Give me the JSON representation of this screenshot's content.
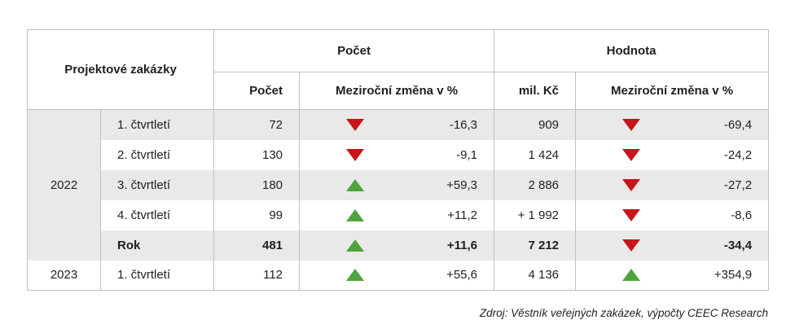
{
  "chart_data": {
    "type": "table",
    "corner_header": "Projektové zakázky",
    "groups": [
      {
        "label": "Počet",
        "subcolumns": [
          "Počet",
          "Meziroční změna v %"
        ]
      },
      {
        "label": "Hodnota",
        "subcolumns": [
          "mil. Kč",
          "Meziroční změna v %"
        ]
      }
    ],
    "rows": [
      {
        "year": "2022",
        "year_rowspan": 5,
        "year_shaded": true,
        "period": "1. čtvrtletí",
        "count": "72",
        "count_change_dir": "down",
        "count_change": "-16,3",
        "value_mil_kc": "909",
        "value_change_dir": "down",
        "value_change": "-69,4",
        "shaded": true,
        "bold": false
      },
      {
        "period": "2. čtvrtletí",
        "count": "130",
        "count_change_dir": "down",
        "count_change": "-9,1",
        "value_mil_kc": "1 424",
        "value_change_dir": "down",
        "value_change": "-24,2",
        "shaded": false,
        "bold": false
      },
      {
        "period": "3. čtvrtletí",
        "count": "180",
        "count_change_dir": "up",
        "count_change": "+59,3",
        "value_mil_kc": "2 886",
        "value_change_dir": "down",
        "value_change": "-27,2",
        "shaded": true,
        "bold": false
      },
      {
        "period": "4. čtvrtletí",
        "count": "99",
        "count_change_dir": "up",
        "count_change": "+11,2",
        "value_mil_kc": "+ 1 992",
        "value_change_dir": "down",
        "value_change": "-8,6",
        "shaded": false,
        "bold": false
      },
      {
        "period": "Rok",
        "count": "481",
        "count_change_dir": "up",
        "count_change": "+11,6",
        "value_mil_kc": "7 212",
        "value_change_dir": "down",
        "value_change": "-34,4",
        "shaded": true,
        "bold": true
      },
      {
        "year": "2023",
        "year_rowspan": 1,
        "year_shaded": false,
        "period": "1. čtvrtletí",
        "count": "112",
        "count_change_dir": "up",
        "count_change": "+55,6",
        "value_mil_kc": "4 136",
        "value_change_dir": "up",
        "value_change": "+354,9",
        "shaded": false,
        "bold": false
      }
    ],
    "source": "Zdroj: Věstník veřejných zakázek, výpočty CEEC Research",
    "colors": {
      "up_green": "#4ea43c",
      "down_red": "#c8141a",
      "row_shade": "#e9e9e9",
      "border": "#c1c1c1"
    }
  }
}
